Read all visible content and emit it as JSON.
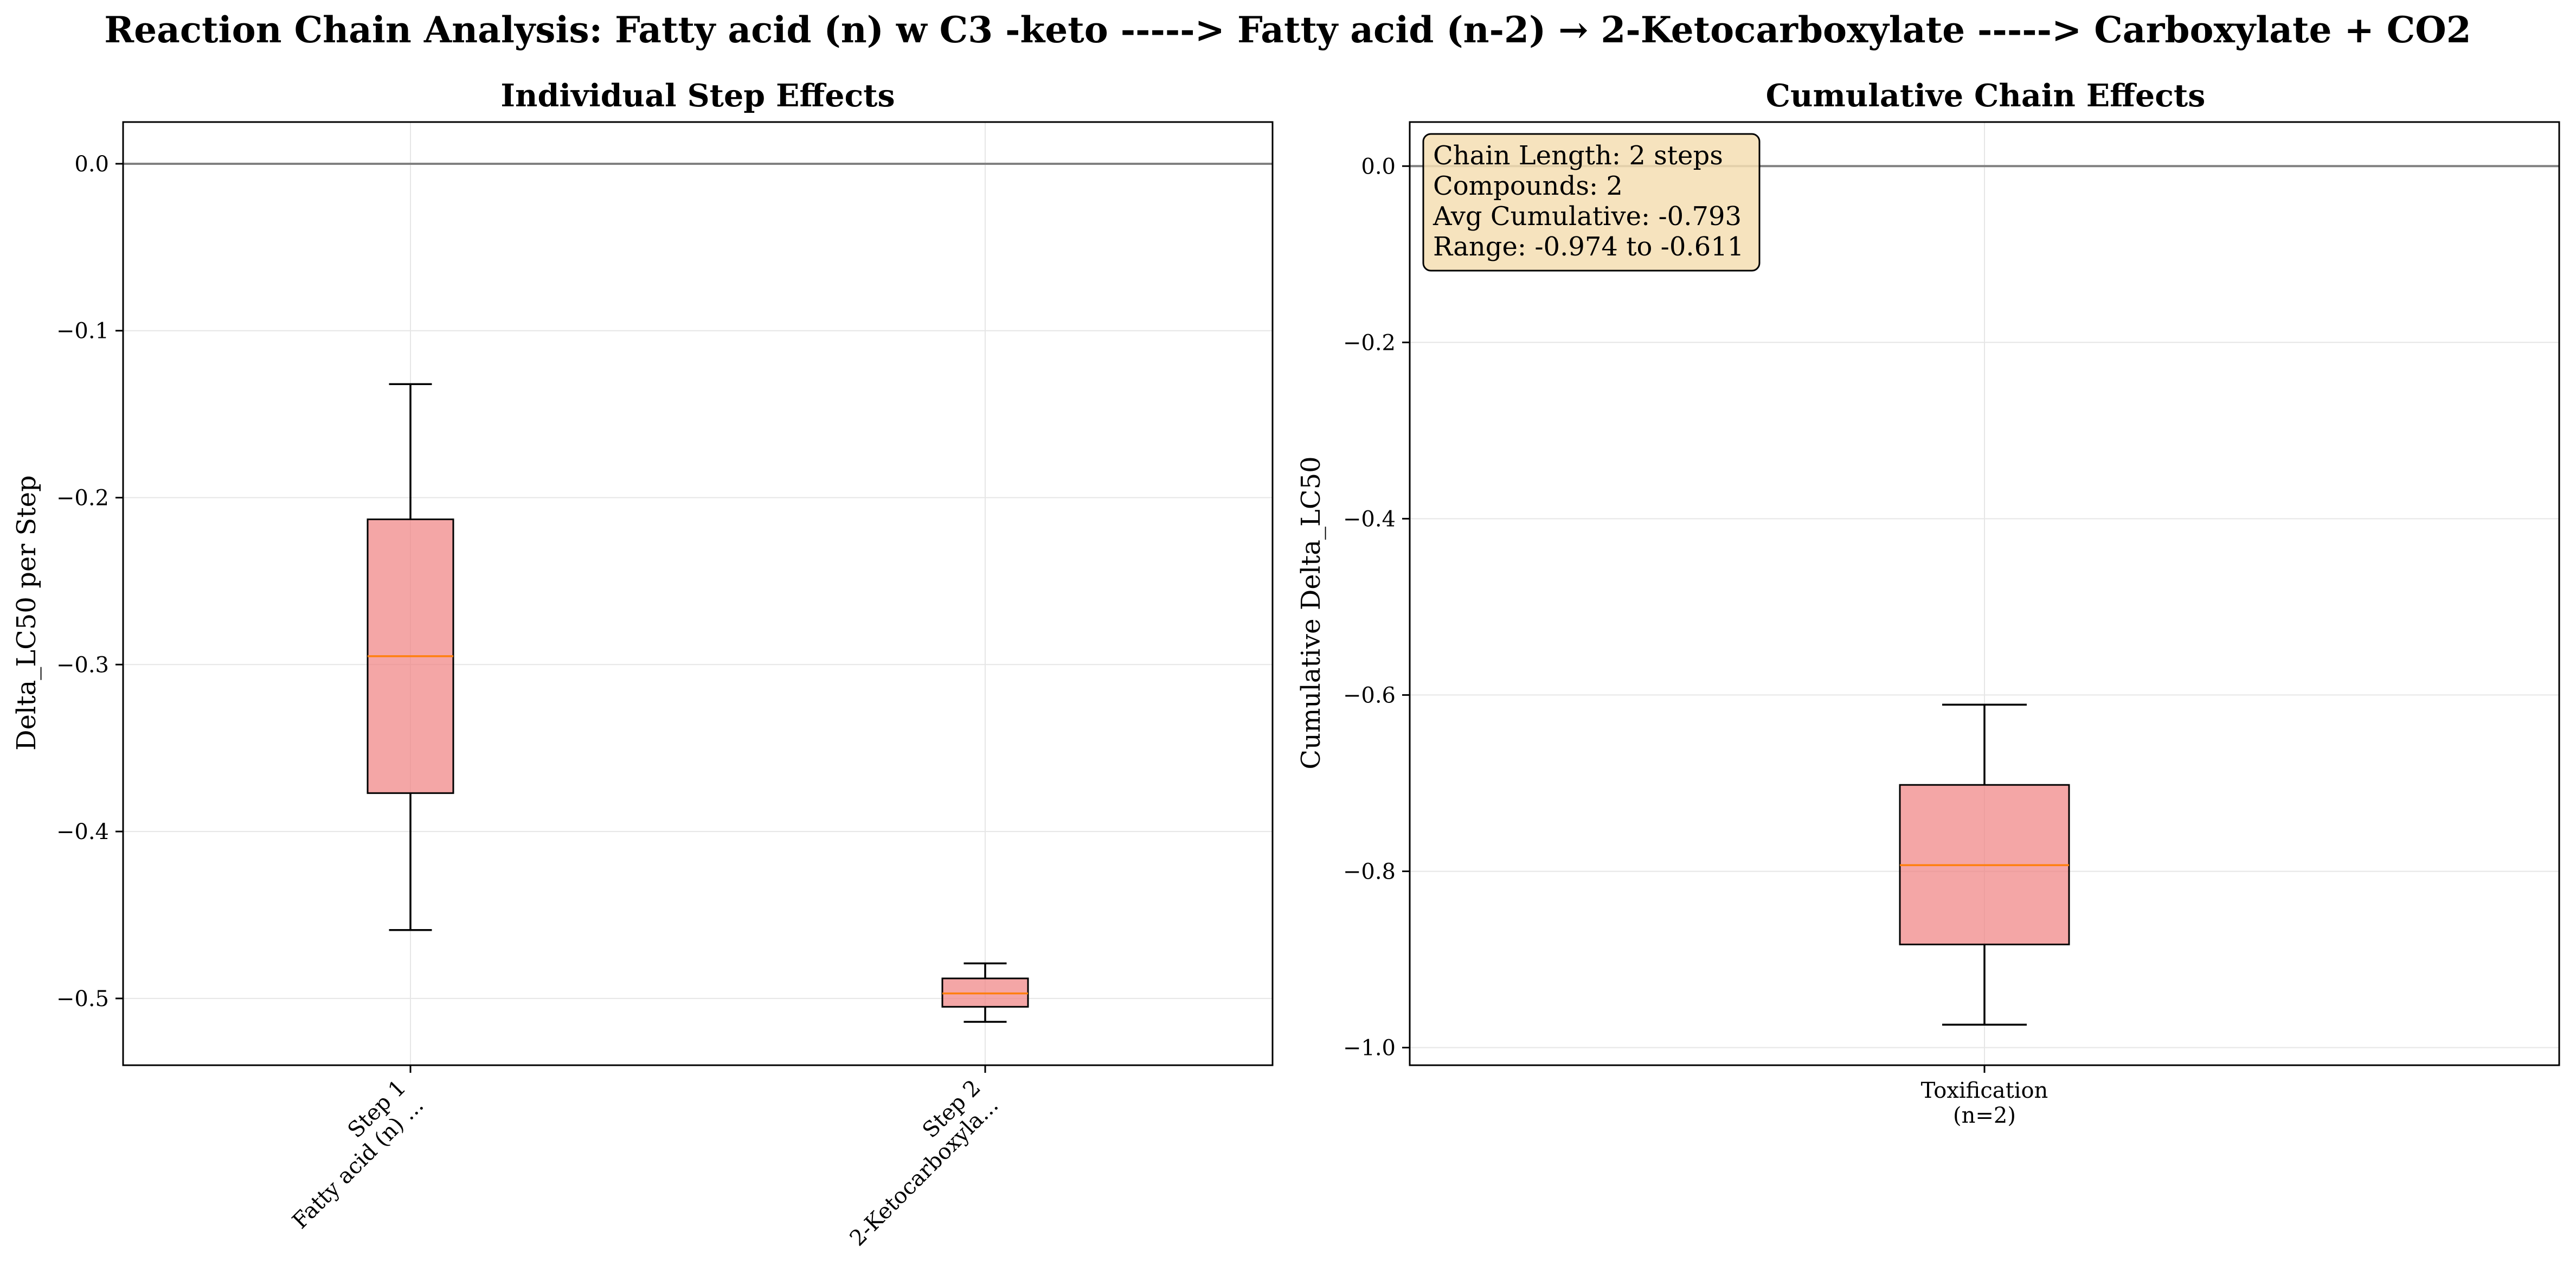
{
  "figure": {
    "suptitle": "Reaction Chain Analysis: Fatty acid (n) w C3 -keto -----> Fatty acid (n-2) → 2-Ketocarboxylate -----> Carboxylate + CO2"
  },
  "colors": {
    "box_fill": "#f08080",
    "median": "#ff7f0e",
    "zero_line": "#808080",
    "grid": "#e6e6e6",
    "info_box_fill": "#f5deb3"
  },
  "chart_data": [
    {
      "type": "box",
      "title": "Individual Step Effects",
      "xlabel": "",
      "ylabel": "Delta_LC50 per Step",
      "ylim": [
        -0.54,
        0.025
      ],
      "yticks": [
        0.0,
        -0.1,
        -0.2,
        -0.3,
        -0.4,
        -0.5
      ],
      "ytick_labels": [
        "0.0",
        "−0.1",
        "−0.2",
        "−0.3",
        "−0.4",
        "−0.5"
      ],
      "grid": true,
      "zero_line": 0.0,
      "categories": [
        [
          "Step 1",
          "Fatty acid (n) ..."
        ],
        [
          "Step 2",
          "2-Ketocarboxyla..."
        ]
      ],
      "xtick_rotation": 45,
      "boxes": [
        {
          "whislo": -0.459,
          "q1": -0.377,
          "median": -0.295,
          "q3": -0.213,
          "whishi": -0.132
        },
        {
          "whislo": -0.514,
          "q1": -0.505,
          "median": -0.497,
          "q3": -0.488,
          "whishi": -0.479
        }
      ]
    },
    {
      "type": "box",
      "title": "Cumulative Chain Effects",
      "xlabel": "",
      "ylabel": "Cumulative Delta_LC50",
      "ylim": [
        -1.02,
        0.05
      ],
      "yticks": [
        0.0,
        -0.2,
        -0.4,
        -0.6,
        -0.8,
        -1.0
      ],
      "ytick_labels": [
        "0.0",
        "−0.2",
        "−0.4",
        "−0.6",
        "−0.8",
        "−1.0"
      ],
      "grid": true,
      "zero_line": 0.0,
      "categories": [
        [
          "Toxification",
          "(n=2)"
        ]
      ],
      "xtick_rotation": 0,
      "boxes": [
        {
          "whislo": -0.974,
          "q1": -0.883,
          "median": -0.793,
          "q3": -0.702,
          "whishi": -0.611
        }
      ],
      "annotation": {
        "lines": [
          "Chain Length: 2 steps",
          "Compounds: 2",
          "Avg Cumulative: -0.793",
          "Range: -0.974 to -0.611"
        ],
        "position": "top-left"
      }
    }
  ]
}
